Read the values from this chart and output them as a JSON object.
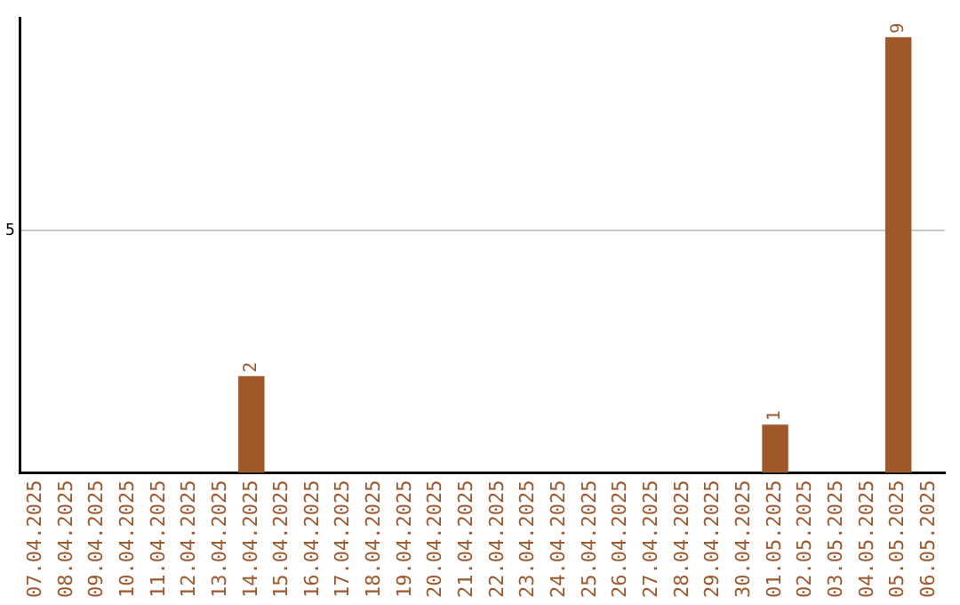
{
  "chart_data": {
    "type": "bar",
    "categories": [
      "07.04.2025",
      "08.04.2025",
      "09.04.2025",
      "10.04.2025",
      "11.04.2025",
      "12.04.2025",
      "13.04.2025",
      "14.04.2025",
      "15.04.2025",
      "16.04.2025",
      "17.04.2025",
      "18.04.2025",
      "19.04.2025",
      "20.04.2025",
      "21.04.2025",
      "22.04.2025",
      "23.04.2025",
      "24.04.2025",
      "25.04.2025",
      "26.04.2025",
      "27.04.2025",
      "28.04.2025",
      "29.04.2025",
      "30.04.2025",
      "01.05.2025",
      "02.05.2025",
      "03.05.2025",
      "04.05.2025",
      "05.05.2025",
      "06.05.2025"
    ],
    "values": [
      0,
      0,
      0,
      0,
      0,
      0,
      0,
      2,
      0,
      0,
      0,
      0,
      0,
      0,
      0,
      0,
      0,
      0,
      0,
      0,
      0,
      0,
      0,
      0,
      1,
      0,
      0,
      0,
      9,
      0
    ],
    "value_labels": [
      null,
      null,
      null,
      null,
      null,
      null,
      null,
      "2",
      null,
      null,
      null,
      null,
      null,
      null,
      null,
      null,
      null,
      null,
      null,
      null,
      null,
      null,
      null,
      null,
      "1",
      null,
      null,
      null,
      "9",
      null
    ],
    "color": "#a0572a",
    "ylim": [
      0,
      9.4
    ],
    "yticks": [
      5
    ],
    "grid": "y",
    "legend": false
  }
}
